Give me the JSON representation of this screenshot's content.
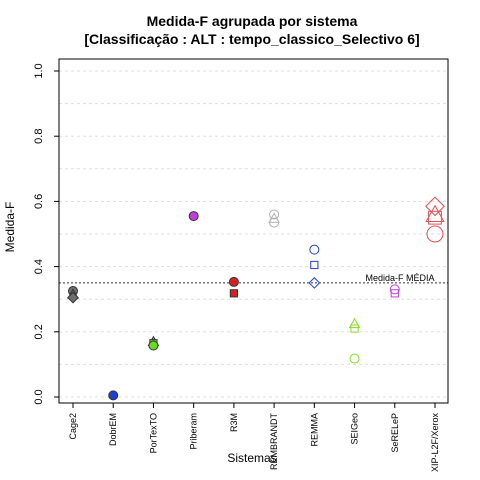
{
  "chart_data": {
    "type": "scatter",
    "title_line1": "Medida-F agrupada por sistema",
    "title_line2": "[Classificação : ALT : tempo_classico_Selectivo 6]",
    "xlabel": "Sistemas",
    "ylabel": "Medida-F",
    "ylim": [
      0.0,
      1.0
    ],
    "yticks": [
      "0.0",
      "0.2",
      "0.4",
      "0.6",
      "0.8",
      "1.0"
    ],
    "grid": true,
    "reference_line": {
      "y": 0.35,
      "label": "Medida-F MÉDIA"
    },
    "categories": [
      "Cage2",
      "DobrEM",
      "PorTexTO",
      "Priberam",
      "R3M",
      "REMBRANDT",
      "REMMA",
      "SEIGeo",
      "SeRELeP",
      "XIP-L2F/Xerox"
    ],
    "points": [
      {
        "system": "Cage2",
        "value": 0.325,
        "shape": "circle",
        "filled": true,
        "color": "#6f6f6f"
      },
      {
        "system": "Cage2",
        "value": 0.315,
        "shape": "triangle",
        "filled": true,
        "color": "#6f6f6f"
      },
      {
        "system": "Cage2",
        "value": 0.305,
        "shape": "diamond",
        "filled": true,
        "color": "#6f6f6f"
      },
      {
        "system": "DobrEM",
        "value": 0.005,
        "shape": "circle",
        "filled": true,
        "color": "#1f3fd1"
      },
      {
        "system": "PorTexTO",
        "value": 0.17,
        "shape": "triangle",
        "filled": true,
        "color": "#66dd22"
      },
      {
        "system": "PorTexTO",
        "value": 0.165,
        "shape": "square",
        "filled": true,
        "color": "#66dd22"
      },
      {
        "system": "PorTexTO",
        "value": 0.158,
        "shape": "circle",
        "filled": true,
        "color": "#66dd22"
      },
      {
        "system": "Priberam",
        "value": 0.555,
        "shape": "circle",
        "filled": true,
        "color": "#c13fd8"
      },
      {
        "system": "R3M",
        "value": 0.353,
        "shape": "circle",
        "filled": true,
        "color": "#d82222"
      },
      {
        "system": "R3M",
        "value": 0.318,
        "shape": "square",
        "filled": true,
        "color": "#d82222"
      },
      {
        "system": "REMBRANDT",
        "value": 0.56,
        "shape": "circle",
        "filled": false,
        "color": "#b0b0b0"
      },
      {
        "system": "REMBRANDT",
        "value": 0.548,
        "shape": "triangle",
        "filled": false,
        "color": "#b0b0b0"
      },
      {
        "system": "REMBRANDT",
        "value": 0.535,
        "shape": "circle",
        "filled": false,
        "color": "#b0b0b0"
      },
      {
        "system": "REMMA",
        "value": 0.452,
        "shape": "circle",
        "filled": false,
        "color": "#1f3fd1"
      },
      {
        "system": "REMMA",
        "value": 0.405,
        "shape": "square",
        "filled": false,
        "color": "#1f3fd1"
      },
      {
        "system": "REMMA",
        "value": 0.35,
        "shape": "diamond",
        "filled": false,
        "color": "#1f3fd1"
      },
      {
        "system": "SEIGeo",
        "value": 0.225,
        "shape": "triangle",
        "filled": false,
        "color": "#88dd22"
      },
      {
        "system": "SEIGeo",
        "value": 0.21,
        "shape": "square",
        "filled": false,
        "color": "#88dd22"
      },
      {
        "system": "SEIGeo",
        "value": 0.118,
        "shape": "circle",
        "filled": false,
        "color": "#88dd22"
      },
      {
        "system": "SeRELeP",
        "value": 0.33,
        "shape": "circle",
        "filled": false,
        "color": "#c13fd8"
      },
      {
        "system": "SeRELeP",
        "value": 0.318,
        "shape": "square",
        "filled": false,
        "color": "#c13fd8"
      },
      {
        "system": "XIP-L2F/Xerox",
        "value": 0.585,
        "shape": "diamond",
        "filled": false,
        "color": "#e05050",
        "size": "large"
      },
      {
        "system": "XIP-L2F/Xerox",
        "value": 0.56,
        "shape": "triangle",
        "filled": false,
        "color": "#e05050",
        "size": "large"
      },
      {
        "system": "XIP-L2F/Xerox",
        "value": 0.55,
        "shape": "square",
        "filled": false,
        "color": "#e05050",
        "size": "large"
      },
      {
        "system": "XIP-L2F/Xerox",
        "value": 0.5,
        "shape": "circle",
        "filled": false,
        "color": "#e05050",
        "size": "large"
      }
    ]
  }
}
